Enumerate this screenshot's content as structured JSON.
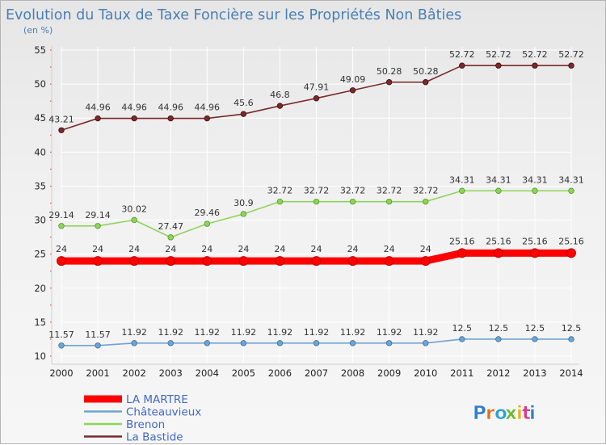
{
  "chart_data": {
    "type": "line",
    "title": "Evolution du Taux de Taxe Foncière sur les Propriétés Non Bâties",
    "subtitle": "(en %)",
    "xlabel": "",
    "ylabel": "",
    "ylim": [
      10,
      55
    ],
    "yticks": [
      10,
      15,
      20,
      25,
      30,
      35,
      40,
      45,
      50,
      55
    ],
    "categories": [
      "2000",
      "2001",
      "2002",
      "2003",
      "2004",
      "2005",
      "2006",
      "2007",
      "2008",
      "2009",
      "2010",
      "2011",
      "2012",
      "2013",
      "2014"
    ],
    "legend_position": "bottom-left",
    "series": [
      {
        "name": "LA MARTRE",
        "color": "#ff0000",
        "values": [
          24,
          24,
          24,
          24,
          24,
          24,
          24,
          24,
          24,
          24,
          24,
          25.16,
          25.16,
          25.16,
          25.16
        ],
        "labels": [
          "24",
          "24",
          "24",
          "24",
          "24",
          "24",
          "24",
          "24",
          "24",
          "24",
          "24",
          "25.16",
          "25.16",
          "25.16",
          "25.16"
        ]
      },
      {
        "name": "Châteauvieux",
        "color": "#6fa3d2",
        "values": [
          11.57,
          11.57,
          11.92,
          11.92,
          11.92,
          11.92,
          11.92,
          11.92,
          11.92,
          11.92,
          11.92,
          12.5,
          12.5,
          12.5,
          12.5
        ],
        "labels": [
          "11.57",
          "11.57",
          "11.92",
          "11.92",
          "11.92",
          "11.92",
          "11.92",
          "11.92",
          "11.92",
          "11.92",
          "11.92",
          "12.5",
          "12.5",
          "12.5",
          "12.5"
        ]
      },
      {
        "name": "Brenon",
        "color": "#8ed45a",
        "values": [
          29.14,
          29.14,
          30.02,
          27.47,
          29.46,
          30.9,
          32.72,
          32.72,
          32.72,
          32.72,
          32.72,
          34.31,
          34.31,
          34.31,
          34.31
        ],
        "labels": [
          "29.14",
          "29.14",
          "30.02",
          "27.47",
          "29.46",
          "30.9",
          "32.72",
          "32.72",
          "32.72",
          "32.72",
          "32.72",
          "34.31",
          "34.31",
          "34.31",
          "34.31"
        ]
      },
      {
        "name": "La Bastide",
        "color": "#7a2a2a",
        "values": [
          43.21,
          44.96,
          44.96,
          44.96,
          44.96,
          45.6,
          46.8,
          47.91,
          49.09,
          50.28,
          50.28,
          52.72,
          52.72,
          52.72,
          52.72
        ],
        "labels": [
          "43.21",
          "44.96",
          "44.96",
          "44.96",
          "44.96",
          "45.6",
          "46.8",
          "47.91",
          "49.09",
          "50.28",
          "50.28",
          "52.72",
          "52.72",
          "52.72",
          "52.72"
        ]
      }
    ]
  },
  "watermark": {
    "text": "Proxiti",
    "letter_colors": [
      "#2f7fc8",
      "#e86a1e",
      "#2aa0d8",
      "#6ab82c",
      "#e8b01e",
      "#d83a8a",
      "#2f7fc8"
    ]
  }
}
